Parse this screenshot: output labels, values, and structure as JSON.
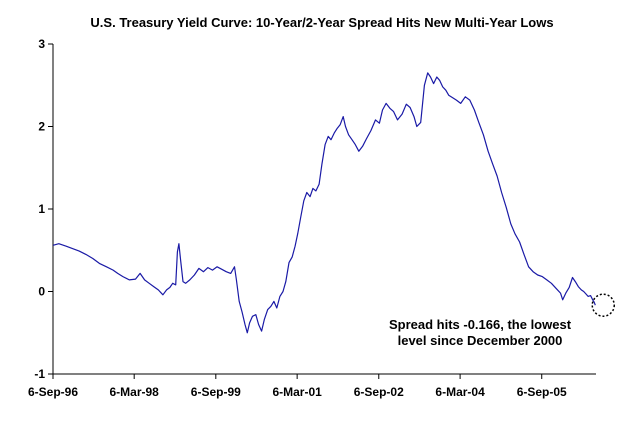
{
  "chart_data": {
    "type": "line",
    "title": "U.S. Treasury Yield Curve: 10-Year/2-Year Spread Hits New Multi-Year Lows",
    "xlabel": "",
    "ylabel": "",
    "ylim": [
      -1,
      3
    ],
    "yticks": [
      "3",
      "2",
      "1",
      "0",
      "-1"
    ],
    "xlim": [
      "1996-09-06",
      "2006-09-06"
    ],
    "xtick_labels": [
      "6-Sep-96",
      "6-Mar-98",
      "6-Sep-99",
      "6-Mar-01",
      "6-Sep-02",
      "6-Mar-04",
      "6-Sep-05"
    ],
    "xtick_dates": [
      "1996-09-06",
      "1998-03-06",
      "1999-09-06",
      "2001-03-06",
      "2002-09-06",
      "2004-03-06",
      "2005-09-06"
    ],
    "grid": false,
    "legend": "none",
    "line_color": "#1a1aa6",
    "series": [
      {
        "points": [
          [
            "1996-09-06",
            0.56
          ],
          [
            "1996-10-15",
            0.58
          ],
          [
            "1996-12-01",
            0.55
          ],
          [
            "1997-01-15",
            0.52
          ],
          [
            "1997-03-01",
            0.49
          ],
          [
            "1997-04-15",
            0.45
          ],
          [
            "1997-06-01",
            0.4
          ],
          [
            "1997-07-15",
            0.34
          ],
          [
            "1997-09-01",
            0.3
          ],
          [
            "1997-10-15",
            0.26
          ],
          [
            "1997-11-15",
            0.22
          ],
          [
            "1997-12-20",
            0.18
          ],
          [
            "1998-02-01",
            0.14
          ],
          [
            "1998-03-15",
            0.15
          ],
          [
            "1998-04-15",
            0.22
          ],
          [
            "1998-05-15",
            0.14
          ],
          [
            "1998-06-15",
            0.1
          ],
          [
            "1998-07-15",
            0.06
          ],
          [
            "1998-08-15",
            0.02
          ],
          [
            "1998-09-15",
            -0.04
          ],
          [
            "1998-10-10",
            0.02
          ],
          [
            "1998-11-01",
            0.05
          ],
          [
            "1998-11-20",
            0.1
          ],
          [
            "1998-12-10",
            0.08
          ],
          [
            "1998-12-22",
            0.48
          ],
          [
            "1999-01-01",
            0.58
          ],
          [
            "1999-01-12",
            0.38
          ],
          [
            "1999-01-28",
            0.12
          ],
          [
            "1999-02-15",
            0.1
          ],
          [
            "1999-03-15",
            0.14
          ],
          [
            "1999-04-15",
            0.2
          ],
          [
            "1999-05-15",
            0.28
          ],
          [
            "1999-06-15",
            0.24
          ],
          [
            "1999-07-15",
            0.29
          ],
          [
            "1999-08-15",
            0.26
          ],
          [
            "1999-09-15",
            0.3
          ],
          [
            "1999-10-15",
            0.27
          ],
          [
            "1999-11-15",
            0.24
          ],
          [
            "1999-12-15",
            0.22
          ],
          [
            "2000-01-10",
            0.3
          ],
          [
            "2000-01-22",
            0.15
          ],
          [
            "2000-02-10",
            -0.12
          ],
          [
            "2000-03-01",
            -0.25
          ],
          [
            "2000-03-20",
            -0.4
          ],
          [
            "2000-04-05",
            -0.5
          ],
          [
            "2000-04-20",
            -0.38
          ],
          [
            "2000-05-10",
            -0.3
          ],
          [
            "2000-06-01",
            -0.28
          ],
          [
            "2000-06-20",
            -0.4
          ],
          [
            "2000-07-10",
            -0.48
          ],
          [
            "2000-07-28",
            -0.34
          ],
          [
            "2000-08-20",
            -0.22
          ],
          [
            "2000-09-10",
            -0.18
          ],
          [
            "2000-10-01",
            -0.12
          ],
          [
            "2000-10-20",
            -0.2
          ],
          [
            "2000-11-10",
            -0.06
          ],
          [
            "2000-12-01",
            0.0
          ],
          [
            "2000-12-20",
            0.12
          ],
          [
            "2001-01-10",
            0.35
          ],
          [
            "2001-02-01",
            0.42
          ],
          [
            "2001-02-20",
            0.55
          ],
          [
            "2001-03-10",
            0.7
          ],
          [
            "2001-03-30",
            0.9
          ],
          [
            "2001-04-20",
            1.1
          ],
          [
            "2001-05-10",
            1.2
          ],
          [
            "2001-06-01",
            1.15
          ],
          [
            "2001-06-20",
            1.25
          ],
          [
            "2001-07-10",
            1.22
          ],
          [
            "2001-08-01",
            1.3
          ],
          [
            "2001-08-20",
            1.55
          ],
          [
            "2001-09-10",
            1.78
          ],
          [
            "2001-10-01",
            1.88
          ],
          [
            "2001-10-20",
            1.84
          ],
          [
            "2001-11-10",
            1.92
          ],
          [
            "2001-12-01",
            1.98
          ],
          [
            "2001-12-20",
            2.02
          ],
          [
            "2002-01-10",
            2.12
          ],
          [
            "2002-01-25",
            2.0
          ],
          [
            "2002-02-15",
            1.9
          ],
          [
            "2002-03-10",
            1.84
          ],
          [
            "2002-04-01",
            1.78
          ],
          [
            "2002-04-25",
            1.7
          ],
          [
            "2002-05-20",
            1.76
          ],
          [
            "2002-06-15",
            1.85
          ],
          [
            "2002-07-15",
            1.95
          ],
          [
            "2002-08-15",
            2.08
          ],
          [
            "2002-09-10",
            2.04
          ],
          [
            "2002-10-01",
            2.2
          ],
          [
            "2002-10-25",
            2.28
          ],
          [
            "2002-11-20",
            2.22
          ],
          [
            "2002-12-15",
            2.18
          ],
          [
            "2003-01-10",
            2.08
          ],
          [
            "2003-02-10",
            2.15
          ],
          [
            "2003-03-10",
            2.27
          ],
          [
            "2003-04-05",
            2.23
          ],
          [
            "2003-05-01",
            2.12
          ],
          [
            "2003-05-20",
            2.0
          ],
          [
            "2003-06-15",
            2.05
          ],
          [
            "2003-07-10",
            2.5
          ],
          [
            "2003-08-01",
            2.65
          ],
          [
            "2003-08-20",
            2.6
          ],
          [
            "2003-09-10",
            2.52
          ],
          [
            "2003-10-01",
            2.6
          ],
          [
            "2003-10-20",
            2.56
          ],
          [
            "2003-11-10",
            2.48
          ],
          [
            "2003-12-01",
            2.44
          ],
          [
            "2003-12-20",
            2.38
          ],
          [
            "2004-01-15",
            2.35
          ],
          [
            "2004-02-10",
            2.32
          ],
          [
            "2004-03-10",
            2.28
          ],
          [
            "2004-04-10",
            2.36
          ],
          [
            "2004-05-10",
            2.32
          ],
          [
            "2004-06-10",
            2.2
          ],
          [
            "2004-07-10",
            2.05
          ],
          [
            "2004-08-10",
            1.9
          ],
          [
            "2004-09-10",
            1.7
          ],
          [
            "2004-10-10",
            1.55
          ],
          [
            "2004-11-10",
            1.4
          ],
          [
            "2004-12-10",
            1.2
          ],
          [
            "2005-01-10",
            1.02
          ],
          [
            "2005-02-10",
            0.82
          ],
          [
            "2005-03-10",
            0.7
          ],
          [
            "2005-04-10",
            0.6
          ],
          [
            "2005-05-10",
            0.45
          ],
          [
            "2005-06-10",
            0.3
          ],
          [
            "2005-07-10",
            0.24
          ],
          [
            "2005-08-10",
            0.2
          ],
          [
            "2005-09-10",
            0.18
          ],
          [
            "2005-10-10",
            0.14
          ],
          [
            "2005-11-10",
            0.1
          ],
          [
            "2005-12-10",
            0.04
          ],
          [
            "2006-01-10",
            -0.02
          ],
          [
            "2006-01-25",
            -0.1
          ],
          [
            "2006-02-15",
            -0.02
          ],
          [
            "2006-03-10",
            0.05
          ],
          [
            "2006-04-01",
            0.17
          ],
          [
            "2006-04-20",
            0.12
          ],
          [
            "2006-05-10",
            0.06
          ],
          [
            "2006-05-30",
            0.02
          ],
          [
            "2006-06-15",
            0.0
          ],
          [
            "2006-07-01",
            -0.03
          ],
          [
            "2006-07-15",
            -0.06
          ],
          [
            "2006-08-01",
            -0.05
          ],
          [
            "2006-08-15",
            -0.1
          ],
          [
            "2006-08-25",
            -0.13
          ],
          [
            "2006-09-01",
            -0.166
          ]
        ]
      }
    ],
    "annotation": {
      "line1": "Spread hits -0.166, the lowest",
      "line2": "level since December 2000",
      "point_date": "2006-09-01",
      "point_value": -0.166
    }
  }
}
